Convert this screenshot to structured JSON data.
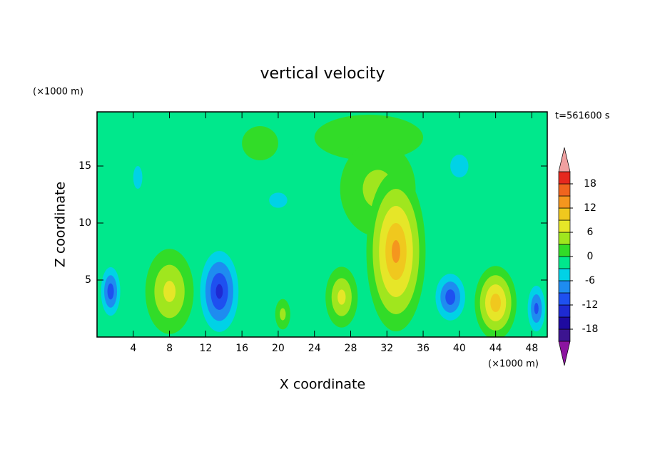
{
  "chart_data": {
    "type": "contour",
    "title": "vertical velocity",
    "x_label": "X coordinate",
    "y_label": "Z coordinate",
    "x_unit": "(×1000 m)",
    "y_unit": "(×1000 m)",
    "annotation": "t=561600 s",
    "xlim": [
      0,
      49.7
    ],
    "ylim": [
      0,
      19.75
    ],
    "xticks": [
      4,
      8,
      12,
      16,
      20,
      24,
      28,
      32,
      36,
      40,
      44,
      48
    ],
    "yticks": [
      5,
      10,
      15
    ],
    "levels": [
      -21,
      -18,
      -15,
      -12,
      -9,
      -6,
      -3,
      0,
      3,
      6,
      9,
      12,
      15,
      18,
      21
    ],
    "colors": [
      "#8c14a0",
      "#3c1490",
      "#1e0aa0",
      "#1e2ad2",
      "#1e50f0",
      "#1e8cf0",
      "#00d2e6",
      "#00e88c",
      "#32dc28",
      "#a0e61e",
      "#e6e628",
      "#f0c81e",
      "#f5961e",
      "#f0641e",
      "#e6281e",
      "#f0a0a0"
    ],
    "colorbar_ticks": [
      18,
      12,
      6,
      0,
      -6,
      -12,
      -18
    ],
    "background": -1,
    "blobs": [
      {
        "x": 30,
        "z": 17.5,
        "rx": 9,
        "rz": 3,
        "value": 2
      },
      {
        "x": 18,
        "z": 17,
        "rx": 4,
        "rz": 3,
        "value": 1
      },
      {
        "x": 4.5,
        "z": 14,
        "rx": 1.5,
        "rz": 3,
        "value": -4
      },
      {
        "x": 20,
        "z": 12,
        "rx": 3,
        "rz": 2,
        "value": -4
      },
      {
        "x": 40,
        "z": 15,
        "rx": 3,
        "rz": 3,
        "value": -4
      },
      {
        "x": 31,
        "z": 13,
        "rx": 5,
        "rz": 5,
        "value": 5
      },
      {
        "x": 1.5,
        "z": 4,
        "rx": 1.3,
        "rz": 2.6,
        "value": -12
      },
      {
        "x": 8,
        "z": 4,
        "rx": 3,
        "rz": 4.2,
        "value": 8
      },
      {
        "x": 13.5,
        "z": 4,
        "rx": 2.5,
        "rz": 4.2,
        "value": -14
      },
      {
        "x": 20.5,
        "z": 2,
        "rx": 1,
        "rz": 1.6,
        "value": 5
      },
      {
        "x": 27,
        "z": 3.5,
        "rx": 2,
        "rz": 3,
        "value": 8
      },
      {
        "x": 33,
        "z": 7.5,
        "rx": 3.5,
        "rz": 7.5,
        "value": 14
      },
      {
        "x": 39,
        "z": 3.5,
        "rx": 2,
        "rz": 2.5,
        "value": -12
      },
      {
        "x": 44,
        "z": 3,
        "rx": 2.5,
        "rz": 3.5,
        "value": 12
      },
      {
        "x": 48.5,
        "z": 2.5,
        "rx": 1.2,
        "rz": 2.5,
        "value": -11
      }
    ]
  }
}
